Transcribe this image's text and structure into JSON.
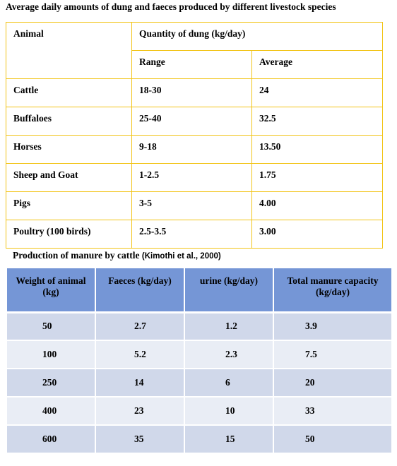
{
  "title1": "Average daily amounts of dung and faeces produced by different livestock species",
  "table1": {
    "header_animal": "Animal",
    "header_quantity": "Quantity of dung (kg/day)",
    "header_range": "Range",
    "header_average": "Average",
    "rows": [
      {
        "animal": "Cattle",
        "range": "18-30",
        "average": "24"
      },
      {
        "animal": "Buffaloes",
        "range": "25-40",
        "average": "32.5"
      },
      {
        "animal": "Horses",
        "range": "9-18",
        "average": "13.50"
      },
      {
        "animal": "Sheep and Goat",
        "range": "1-2.5",
        "average": "1.75"
      },
      {
        "animal": "Pigs",
        "range": "3-5",
        "average": "4.00"
      },
      {
        "animal": "Poultry (100 birds)",
        "range": "2.5-3.5",
        "average": "3.00"
      }
    ]
  },
  "title2": {
    "text": "Production of manure by cattle ",
    "citation": "(Kimothi et al., 2000)"
  },
  "table2": {
    "headers": {
      "weight": "Weight of animal (kg)",
      "faeces": "Faeces (kg/day)",
      "urine": "urine (kg/day)",
      "total": "Total manure capacity (kg/day)"
    },
    "rows": [
      {
        "weight": "50",
        "faeces": "2.7",
        "urine": "1.2",
        "total": "3.9"
      },
      {
        "weight": "100",
        "faeces": "5.2",
        "urine": "2.3",
        "total": "7.5"
      },
      {
        "weight": "250",
        "faeces": "14",
        "urine": "6",
        "total": "20"
      },
      {
        "weight": "400",
        "faeces": "23",
        "urine": "10",
        "total": "33"
      },
      {
        "weight": "600",
        "faeces": "35",
        "urine": "15",
        "total": "50"
      }
    ]
  },
  "colors": {
    "table1_border": "#f2c417",
    "table2_header_bg": "#7596d6",
    "table2_row_dark": "#d0d8ea",
    "table2_row_light": "#e9edf5"
  }
}
